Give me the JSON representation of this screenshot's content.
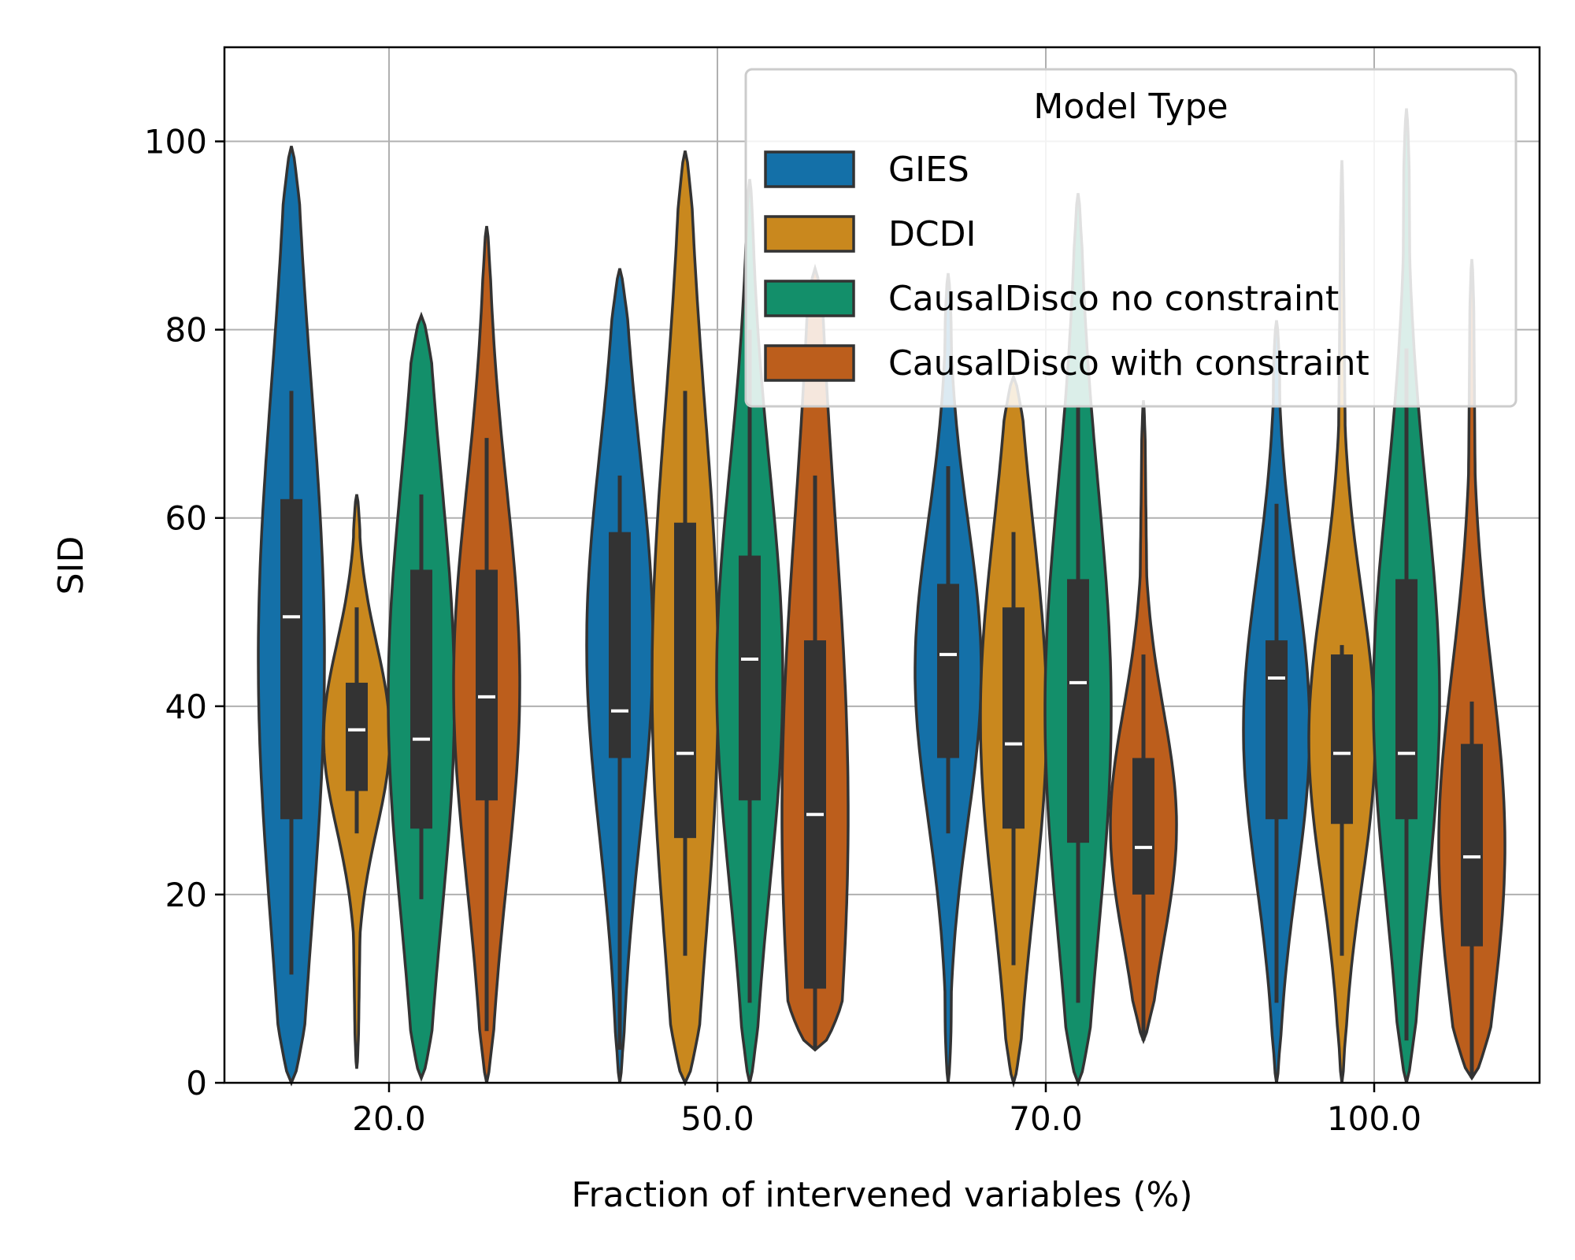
{
  "chart_data": {
    "type": "violin",
    "title": "",
    "xlabel": "Fraction of intervened variables (%)",
    "ylabel": "SID",
    "ylim": [
      0,
      110
    ],
    "yticks": [
      0,
      20,
      40,
      60,
      80,
      100
    ],
    "categories": [
      "20.0",
      "50.0",
      "70.0",
      "100.0"
    ],
    "grid": true,
    "legend": {
      "title": "Model Type",
      "position": "top-right"
    },
    "series": [
      {
        "name": "GIES",
        "color": "#1470a8",
        "stats": [
          {
            "min": 11.5,
            "q1": 28,
            "median": 49.5,
            "q3": 62,
            "max": 73.5
          },
          {
            "min": 3.5,
            "q1": 34.5,
            "median": 39.5,
            "q3": 58.5,
            "max": 64.5
          },
          {
            "min": 26.5,
            "q1": 34.5,
            "median": 45.5,
            "q3": 53,
            "max": 65.5
          },
          {
            "min": 8.5,
            "q1": 28,
            "median": 43,
            "q3": 47,
            "max": 61.5
          }
        ],
        "kde_min": [
          0,
          0,
          0,
          0
        ],
        "kde_max": [
          99.5,
          86.5,
          86,
          81
        ]
      },
      {
        "name": "DCDI",
        "color": "#c9881e",
        "stats": [
          {
            "min": 26.5,
            "q1": 31,
            "median": 37.5,
            "q3": 42.5,
            "max": 50.5
          },
          {
            "min": 13.5,
            "q1": 26,
            "median": 35,
            "q3": 59.5,
            "max": 73.5
          },
          {
            "min": 12.5,
            "q1": 27,
            "median": 36,
            "q3": 50.5,
            "max": 58.5
          },
          {
            "min": 13.5,
            "q1": 27.5,
            "median": 35,
            "q3": 45.5,
            "max": 46.5
          }
        ],
        "kde_min": [
          1.5,
          0,
          0,
          0
        ],
        "kde_max": [
          62.5,
          99,
          75,
          98
        ]
      },
      {
        "name": "CausalDisco no constraint",
        "color": "#138f6a",
        "stats": [
          {
            "min": 19.5,
            "q1": 27,
            "median": 36.5,
            "q3": 54.5,
            "max": 62.5
          },
          {
            "min": 8.5,
            "q1": 30,
            "median": 45,
            "q3": 56,
            "max": 80
          },
          {
            "min": 8.5,
            "q1": 25.5,
            "median": 42.5,
            "q3": 53.5,
            "max": 72
          },
          {
            "min": 4.5,
            "q1": 28,
            "median": 35,
            "q3": 53.5,
            "max": 78
          }
        ],
        "kde_min": [
          0.5,
          0,
          0,
          0
        ],
        "kde_max": [
          81.5,
          96,
          94.5,
          103.5
        ]
      },
      {
        "name": "CausalDisco with constraint",
        "color": "#bc5e1c",
        "stats": [
          {
            "min": 5.5,
            "q1": 30,
            "median": 41,
            "q3": 54.5,
            "max": 68.5
          },
          {
            "min": 3.5,
            "q1": 10,
            "median": 28.5,
            "q3": 47,
            "max": 64.5
          },
          {
            "min": 4.5,
            "q1": 20,
            "median": 25,
            "q3": 34.5,
            "max": 45.5
          },
          {
            "min": 0.5,
            "q1": 14.5,
            "median": 24,
            "q3": 36,
            "max": 40.5
          }
        ],
        "kde_min": [
          0,
          3.5,
          4.5,
          0.5
        ],
        "kde_max": [
          91,
          86.5,
          72.5,
          87.5
        ]
      }
    ]
  }
}
